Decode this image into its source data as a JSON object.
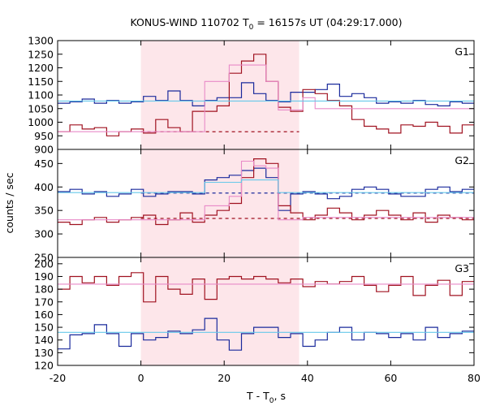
{
  "chart_data": {
    "type": "line",
    "title_main": "KONUS-WIND 110702 T",
    "title_sub": "0",
    "title_rest": " = 16157s UT (04:29:17.000)",
    "xlabel_main": "T - T",
    "xlabel_sub": "0",
    "xlabel_rest": ", s",
    "ylabel": "counts / sec",
    "xlim": [
      -20,
      80
    ],
    "x_ticks": [
      "-20",
      "0",
      "20",
      "40",
      "60",
      "80"
    ],
    "x_tick_values": [
      -20,
      0,
      20,
      40,
      60,
      80
    ],
    "shaded_interval": [
      0,
      38
    ],
    "bin_width": 2.944,
    "x_start": -20,
    "colors": {
      "blue": "#1a2a9c",
      "red": "#a01220",
      "cyan": "#66c8ea",
      "pink": "#e88ac8",
      "shade": "#fde6ea"
    },
    "panels": [
      {
        "label": "G1",
        "ylim": [
          900,
          1300
        ],
        "yticks": [
          900,
          950,
          1000,
          1050,
          1100,
          1150,
          1200,
          1250,
          1300
        ],
        "series": [
          {
            "color_key": "blue",
            "values": [
              1070,
              1075,
              1085,
              1070,
              1080,
              1070,
              1075,
              1095,
              1080,
              1115,
              1080,
              1060,
              1080,
              1090,
              1090,
              1145,
              1105,
              1080,
              1075,
              1110,
              1110,
              1120,
              1140,
              1095,
              1105,
              1090,
              1070,
              1075,
              1070,
              1080,
              1065,
              1060,
              1075,
              1070,
              1075,
              1090,
              1090,
              1110,
              1075,
              1110,
              1070,
              1065,
              1075,
              1075,
              1070,
              1085,
              1090,
              1070,
              1060,
              1075,
              1070,
              1090,
              1075,
              1090,
              1065
            ]
          },
          {
            "color_key": "red",
            "values": [
              965,
              990,
              975,
              980,
              950,
              965,
              975,
              960,
              1010,
              980,
              965,
              1040,
              1040,
              1060,
              1180,
              1225,
              1250,
              1150,
              1055,
              1040,
              1120,
              1105,
              1080,
              1060,
              1010,
              985,
              975,
              960,
              990,
              985,
              1000,
              985,
              960,
              990,
              980,
              975,
              995,
              980,
              975,
              970,
              980,
              1010,
              985,
              975,
              995,
              970,
              960,
              975,
              965,
              980,
              975,
              980,
              975,
              960,
              985
            ]
          },
          {
            "color_key": "pink",
            "values": [
              965,
              965,
              965,
              965,
              965,
              965,
              965,
              965,
              965,
              965,
              965,
              965,
              1150,
              1150,
              1210,
              1210,
              1210,
              1150,
              1045,
              1045,
              1090,
              1050,
              1050,
              1050,
              1050,
              1050,
              1050,
              1050,
              1050,
              1050,
              1050,
              1050,
              1050,
              1050,
              1050,
              1050,
              1050,
              1050,
              1050,
              1050,
              1050,
              1050,
              1050,
              1050,
              1050,
              1050,
              1050,
              1050,
              1050,
              1050,
              1050,
              1050,
              1050,
              1050,
              1050
            ]
          },
          {
            "color_key": "cyan",
            "values": [
              1078,
              1078,
              1078,
              1078,
              1078,
              1078,
              1078,
              1078,
              1078,
              1078,
              1078,
              1078,
              1078,
              1078,
              1078,
              1078,
              1078,
              1078,
              1078,
              1078,
              1078,
              1078,
              1078,
              1078,
              1078,
              1078,
              1078,
              1078,
              1078,
              1078,
              1078,
              1078,
              1078,
              1078,
              1078,
              1078,
              1078,
              1078,
              1078,
              1078,
              1078,
              1078,
              1078,
              1078,
              1078,
              1078,
              1078,
              1078,
              1078,
              1078,
              1078,
              1078,
              1078,
              1078,
              1078
            ]
          }
        ],
        "dashed": [
          {
            "color_key": "red",
            "value": 965,
            "from": 0,
            "to": 38
          }
        ]
      },
      {
        "label": "G2",
        "ylim": [
          250,
          480
        ],
        "yticks": [
          250,
          300,
          350,
          400,
          450
        ],
        "series": [
          {
            "color_key": "blue",
            "values": [
              390,
              395,
              385,
              390,
              380,
              385,
              395,
              380,
              385,
              390,
              390,
              385,
              415,
              420,
              425,
              435,
              440,
              420,
              350,
              385,
              390,
              385,
              375,
              380,
              395,
              400,
              395,
              385,
              380,
              380,
              395,
              400,
              390,
              395,
              385,
              380,
              395,
              385,
              390,
              395,
              380,
              385,
              395,
              390,
              385,
              380,
              395,
              385,
              390,
              380,
              395,
              385,
              390,
              385,
              390
            ]
          },
          {
            "color_key": "red",
            "values": [
              325,
              320,
              330,
              335,
              325,
              330,
              335,
              340,
              320,
              330,
              345,
              325,
              340,
              350,
              365,
              420,
              460,
              450,
              360,
              345,
              330,
              340,
              355,
              345,
              330,
              340,
              350,
              340,
              330,
              345,
              325,
              340,
              335,
              330,
              345,
              340,
              330,
              325,
              335,
              340,
              330,
              345,
              340,
              330,
              355,
              340,
              330,
              345,
              335,
              340,
              330,
              345,
              335,
              340,
              330
            ]
          },
          {
            "color_key": "pink",
            "values": [
              330,
              330,
              330,
              330,
              330,
              330,
              330,
              330,
              330,
              330,
              330,
              330,
              360,
              360,
              380,
              455,
              445,
              440,
              330,
              330,
              335,
              335,
              335,
              335,
              335,
              335,
              335,
              335,
              335,
              335,
              335,
              335,
              335,
              335,
              335,
              335,
              335,
              335,
              335,
              335,
              335,
              335,
              335,
              335,
              335,
              335,
              335,
              335,
              335,
              335,
              335,
              335,
              335,
              335,
              335
            ]
          },
          {
            "color_key": "cyan",
            "values": [
              388,
              388,
              388,
              388,
              388,
              388,
              388,
              388,
              388,
              388,
              388,
              388,
              410,
              410,
              410,
              415,
              415,
              415,
              388,
              388,
              388,
              388,
              388,
              388,
              388,
              388,
              388,
              388,
              388,
              388,
              388,
              388,
              388,
              388,
              388,
              388,
              388,
              388,
              388,
              388,
              388,
              388,
              388,
              388,
              388,
              388,
              388,
              388,
              388,
              388,
              388,
              388,
              388,
              388,
              388
            ]
          }
        ],
        "dashed": [
          {
            "color_key": "blue",
            "value": 387,
            "from": 0,
            "to": 80
          },
          {
            "color_key": "red",
            "value": 333,
            "from": 0,
            "to": 80
          }
        ]
      },
      {
        "label": "G3",
        "ylim": [
          120,
          205
        ],
        "yticks": [
          120,
          130,
          140,
          150,
          160,
          170,
          180,
          190,
          200
        ],
        "series": [
          {
            "color_key": "red",
            "values": [
              180,
              190,
              185,
              190,
              183,
              190,
              193,
              170,
              190,
              180,
              176,
              188,
              172,
              188,
              190,
              188,
              190,
              188,
              185,
              188,
              182,
              186,
              184,
              186,
              190,
              183,
              178,
              183,
              190,
              175,
              183,
              187,
              175,
              186,
              195,
              183,
              178,
              191,
              190,
              175,
              186,
              180,
              172,
              187,
              180,
              185,
              175,
              185,
              178,
              175,
              190,
              180,
              180,
              178,
              190
            ]
          },
          {
            "color_key": "blue",
            "values": [
              133,
              144,
              145,
              152,
              145,
              135,
              145,
              140,
              142,
              147,
              145,
              148,
              157,
              140,
              132,
              145,
              150,
              150,
              142,
              145,
              135,
              140,
              146,
              150,
              140,
              146,
              145,
              142,
              145,
              140,
              150,
              142,
              145,
              147,
              141,
              150,
              146,
              140,
              148,
              158,
              143,
              140,
              145,
              148,
              135,
              145,
              146,
              140,
              147,
              150,
              143,
              148,
              144,
              145,
              147
            ]
          },
          {
            "color_key": "pink",
            "values": [
              184,
              184,
              184,
              184,
              184,
              184,
              184,
              184,
              184,
              184,
              184,
              184,
              184,
              184,
              184,
              184,
              184,
              184,
              184,
              184,
              184,
              184,
              184,
              184,
              184,
              184,
              184,
              184,
              184,
              184,
              184,
              184,
              184,
              184,
              184,
              184,
              184,
              184,
              184,
              184,
              184,
              184,
              184,
              184,
              184,
              184,
              184,
              184,
              184,
              184,
              184,
              184,
              184,
              184,
              184
            ]
          },
          {
            "color_key": "cyan",
            "values": [
              146,
              146,
              146,
              146,
              146,
              146,
              146,
              146,
              146,
              146,
              146,
              146,
              146,
              146,
              146,
              146,
              146,
              146,
              146,
              146,
              146,
              146,
              146,
              146,
              146,
              146,
              146,
              146,
              146,
              146,
              146,
              146,
              146,
              146,
              146,
              146,
              146,
              146,
              146,
              146,
              146,
              146,
              146,
              146,
              146,
              146,
              146,
              146,
              146,
              146,
              146,
              146,
              146,
              146,
              146
            ]
          }
        ],
        "dashed": []
      }
    ]
  }
}
